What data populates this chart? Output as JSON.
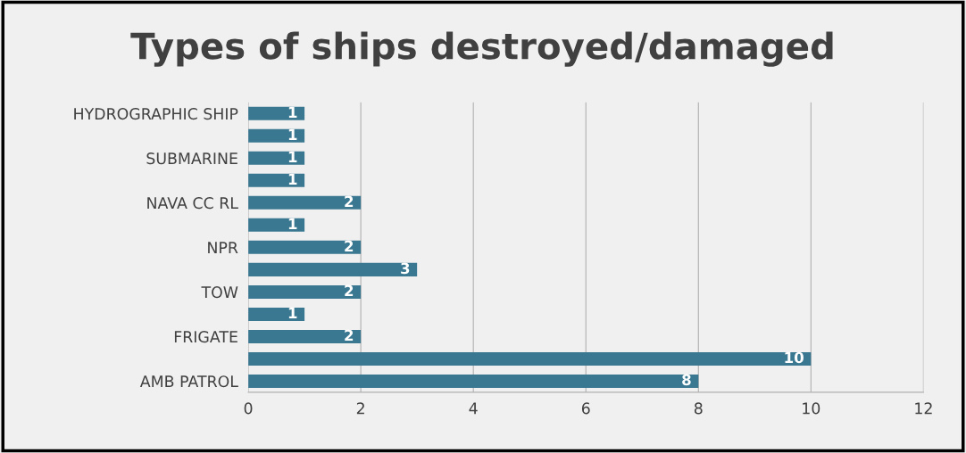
{
  "chart_data": {
    "type": "bar",
    "orientation": "horizontal",
    "title": "Types of ships destroyed/damaged",
    "categories": [
      "HYDROGRAPHIC SHIP",
      null,
      "SUBMARINE",
      null,
      "NAVA CC RL",
      null,
      "NPR",
      null,
      "TOW",
      null,
      "FRIGATE",
      null,
      "AMB PATROL"
    ],
    "values": [
      1,
      1,
      1,
      1,
      2,
      1,
      2,
      3,
      2,
      1,
      2,
      10,
      8
    ],
    "color": "#3a7891",
    "xlim": [
      0,
      12
    ],
    "xticks": [
      0,
      2,
      4,
      6,
      8,
      10,
      12
    ],
    "grid": "x",
    "data_labels": true,
    "legend": false
  }
}
